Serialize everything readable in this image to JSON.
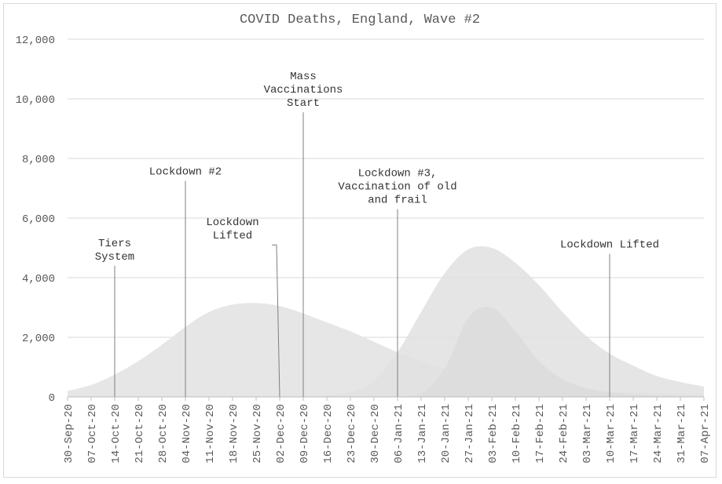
{
  "chart_data": {
    "type": "area",
    "title": "COVID Deaths, England, Wave #2",
    "xlabel": "",
    "ylabel": "",
    "ylim": [
      0,
      12000
    ],
    "yticks": [
      "0",
      "2,000",
      "4,000",
      "6,000",
      "8,000",
      "10,000",
      "12,000"
    ],
    "ytick_values": [
      0,
      2000,
      4000,
      6000,
      8000,
      10000,
      12000
    ],
    "grid": true,
    "legend": "none",
    "categories": [
      "30-Sep-20",
      "07-Oct-20",
      "14-Oct-20",
      "21-Oct-20",
      "28-Oct-20",
      "04-Nov-20",
      "11-Nov-20",
      "18-Nov-20",
      "25-Nov-20",
      "02-Dec-20",
      "09-Dec-20",
      "16-Dec-20",
      "23-Dec-20",
      "30-Dec-20",
      "06-Jan-21",
      "13-Jan-21",
      "20-Jan-21",
      "27-Jan-21",
      "03-Feb-21",
      "10-Feb-21",
      "17-Feb-21",
      "24-Feb-21",
      "03-Mar-21",
      "10-Mar-21",
      "17-Mar-21",
      "24-Mar-21",
      "31-Mar-21",
      "07-Apr-21"
    ],
    "series": [
      {
        "color": "#e6e6e6",
        "values": [
          200,
          400,
          750,
          1200,
          1750,
          2350,
          2850,
          3100,
          3150,
          3050,
          2800,
          2500,
          2200,
          1850,
          1500,
          1200,
          950,
          750,
          600,
          480,
          380,
          300,
          240,
          190,
          150,
          120,
          100,
          80
        ]
      },
      {
        "color": "#e0e0e0",
        "values": [
          0,
          0,
          0,
          0,
          0,
          0,
          0,
          0,
          0,
          0,
          0,
          50,
          150,
          550,
          1500,
          2850,
          4150,
          4950,
          5000,
          4500,
          3750,
          2850,
          2050,
          1450,
          1050,
          700,
          500,
          350
        ]
      },
      {
        "color": "#dcdcdc",
        "values": [
          0,
          0,
          0,
          0,
          0,
          0,
          0,
          0,
          0,
          0,
          0,
          0,
          0,
          0,
          0,
          100,
          950,
          2650,
          3000,
          2200,
          1200,
          600,
          300,
          150,
          80,
          50,
          30,
          20
        ]
      }
    ],
    "annotations": [
      {
        "lines": [
          "Tiers",
          "System"
        ],
        "x_index": 2,
        "y_value": 4400
      },
      {
        "lines": [
          "Lockdown #2"
        ],
        "x_index": 5,
        "y_value": 7250
      },
      {
        "lines": [
          "Lockdown",
          "Lifted"
        ],
        "x_index": 9,
        "y_value": 5100
      },
      {
        "lines": [
          "Mass",
          "Vaccinations",
          "Start"
        ],
        "x_index": 10,
        "y_value": 9550
      },
      {
        "lines": [
          "Lockdown #3,",
          "Vaccination of old",
          "and frail"
        ],
        "x_index": 14,
        "y_value": 6300
      },
      {
        "lines": [
          "Lockdown Lifted"
        ],
        "x_index": 23,
        "y_value": 4800
      }
    ]
  }
}
